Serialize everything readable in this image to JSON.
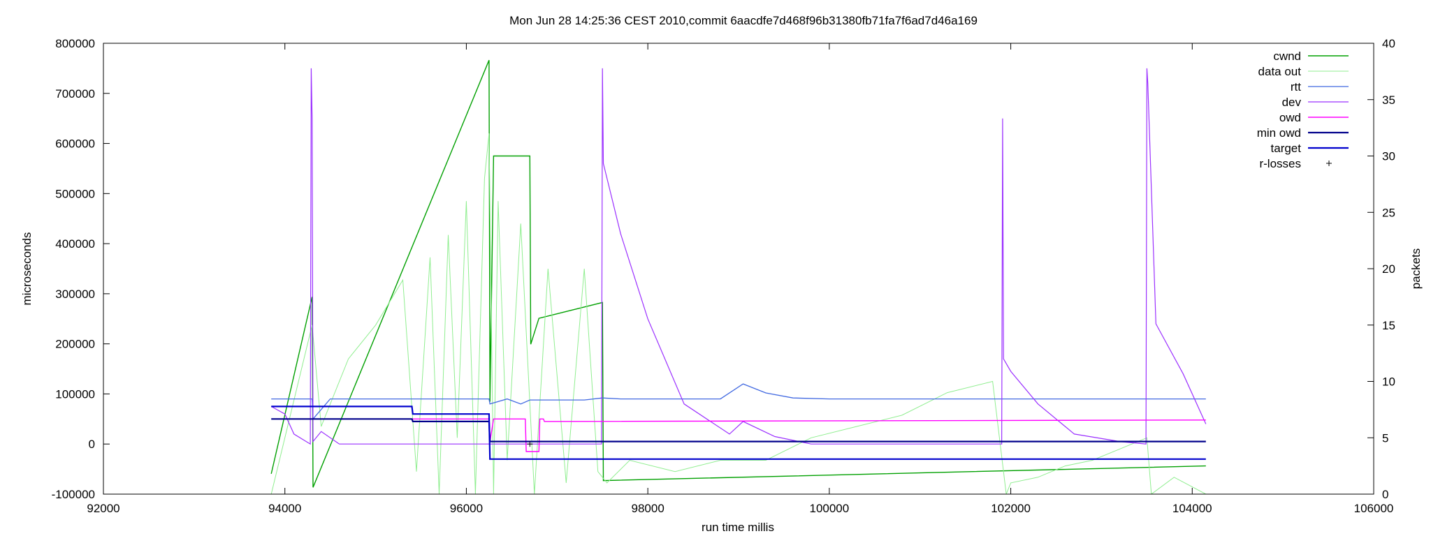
{
  "chart_data": {
    "type": "line",
    "title": "Mon Jun 28 14:25:36 CEST 2010,commit 6aacdfe7d468f96b31380fb71fa7f6ad7d46a169",
    "xlabel": "run time millis",
    "ylabel": "microseconds",
    "y2label": "packets",
    "xlim": [
      92000,
      106000
    ],
    "ylim": [
      -100000,
      800000
    ],
    "y2lim": [
      0,
      40
    ],
    "x_ticks": [
      "92000",
      "94000",
      "96000",
      "98000",
      "100000",
      "102000",
      "104000",
      "106000"
    ],
    "y_ticks": [
      "-100000",
      "0",
      "100000",
      "200000",
      "300000",
      "400000",
      "500000",
      "600000",
      "700000",
      "800000"
    ],
    "y2_ticks": [
      "0",
      "5",
      "10",
      "15",
      "20",
      "25",
      "30",
      "35",
      "40"
    ],
    "legend_position": "top-right",
    "series": [
      {
        "name": "cwnd",
        "color": "#00a000",
        "axis": "y2",
        "x": [
          93850,
          94300,
          94310,
          96250,
          96260,
          96300,
          96700,
          96710,
          96800,
          97500,
          97510,
          104150
        ],
        "y": [
          1.8,
          17.5,
          0.6,
          38.5,
          8.2,
          30.0,
          30.0,
          13.3,
          15.6,
          17.0,
          1.2,
          2.5
        ]
      },
      {
        "name": "data out",
        "color": "#90ee90",
        "axis": "y2",
        "x": [
          93850,
          94000,
          94150,
          94300,
          94400,
          94700,
          95000,
          95300,
          95450,
          95600,
          95700,
          95800,
          95900,
          96000,
          96100,
          96200,
          96250,
          96300,
          96350,
          96450,
          96600,
          96750,
          96900,
          97100,
          97300,
          97450,
          97550,
          97800,
          98300,
          98800,
          99300,
          99800,
          100300,
          100800,
          101300,
          101800,
          101950,
          102000,
          102300,
          102600,
          102900,
          103200,
          103500,
          103550,
          103800,
          104150
        ],
        "y": [
          0,
          5.0,
          10.0,
          15.0,
          6.0,
          12.0,
          15.0,
          19.0,
          2.0,
          21.0,
          0,
          23.0,
          5.0,
          26.0,
          0,
          28.0,
          32.0,
          0,
          26.0,
          3.0,
          24.0,
          0,
          20.0,
          1.0,
          20.0,
          2.0,
          1.0,
          3.0,
          2.0,
          3.0,
          3.0,
          5.0,
          6.0,
          7.0,
          9.0,
          10.0,
          0,
          1.0,
          1.5,
          2.5,
          3.0,
          4.0,
          5.0,
          0,
          1.5,
          0
        ]
      },
      {
        "name": "rtt",
        "color": "#4169e1",
        "axis": "y",
        "x": [
          93850,
          94300,
          94310,
          94500,
          96000,
          96250,
          96260,
          96450,
          96600,
          96700,
          97300,
          97500,
          97700,
          98800,
          99050,
          99300,
          99600,
          100000,
          104150
        ],
        "y": [
          90000,
          90000,
          50000,
          90000,
          90000,
          90000,
          80000,
          90000,
          80000,
          88000,
          88000,
          92000,
          90000,
          90000,
          120000,
          102000,
          92000,
          90000,
          90000
        ]
      },
      {
        "name": "dev",
        "color": "#9b30ff",
        "axis": "y",
        "x": [
          93850,
          94000,
          94100,
          94280,
          94290,
          94300,
          94310,
          94400,
          94600,
          95500,
          96000,
          96250,
          96700,
          97490,
          97500,
          97510,
          97700,
          98000,
          98400,
          98900,
          99050,
          99400,
          99800,
          101900,
          101910,
          101920,
          102000,
          102300,
          102700,
          103200,
          103490,
          103500,
          103510,
          103600,
          103900,
          104150
        ],
        "y": [
          75000,
          60000,
          20000,
          0,
          750000,
          650000,
          5000,
          25000,
          0,
          0,
          0,
          0,
          0,
          0,
          750000,
          560000,
          420000,
          250000,
          80000,
          20000,
          45000,
          15000,
          0,
          0,
          650000,
          170000,
          145000,
          80000,
          20000,
          5000,
          0,
          750000,
          720000,
          240000,
          140000,
          40000
        ]
      },
      {
        "name": "owd",
        "color": "#ff00ff",
        "axis": "y",
        "x": [
          95400,
          96250,
          96260,
          96300,
          96650,
          96660,
          96800,
          96810,
          96850,
          96860,
          104150
        ],
        "y": [
          50000,
          50000,
          5000,
          50000,
          50000,
          -15000,
          -15000,
          50000,
          50000,
          45000,
          48000
        ]
      },
      {
        "name": "min owd",
        "color": "#00008b",
        "axis": "y",
        "x": [
          93850,
          95400,
          95410,
          96250,
          96260,
          104150
        ],
        "y": [
          50000,
          50000,
          45000,
          45000,
          5000,
          5000
        ]
      },
      {
        "name": "target",
        "color": "#0000cd",
        "axis": "y",
        "x": [
          93850,
          95400,
          95410,
          96250,
          96260,
          104150
        ],
        "y": [
          75000,
          75000,
          60000,
          60000,
          -30000,
          -30000
        ]
      },
      {
        "name": "r-losses",
        "color": "#000000",
        "axis": "y",
        "x": [
          96700
        ],
        "y": [
          0
        ]
      }
    ]
  }
}
